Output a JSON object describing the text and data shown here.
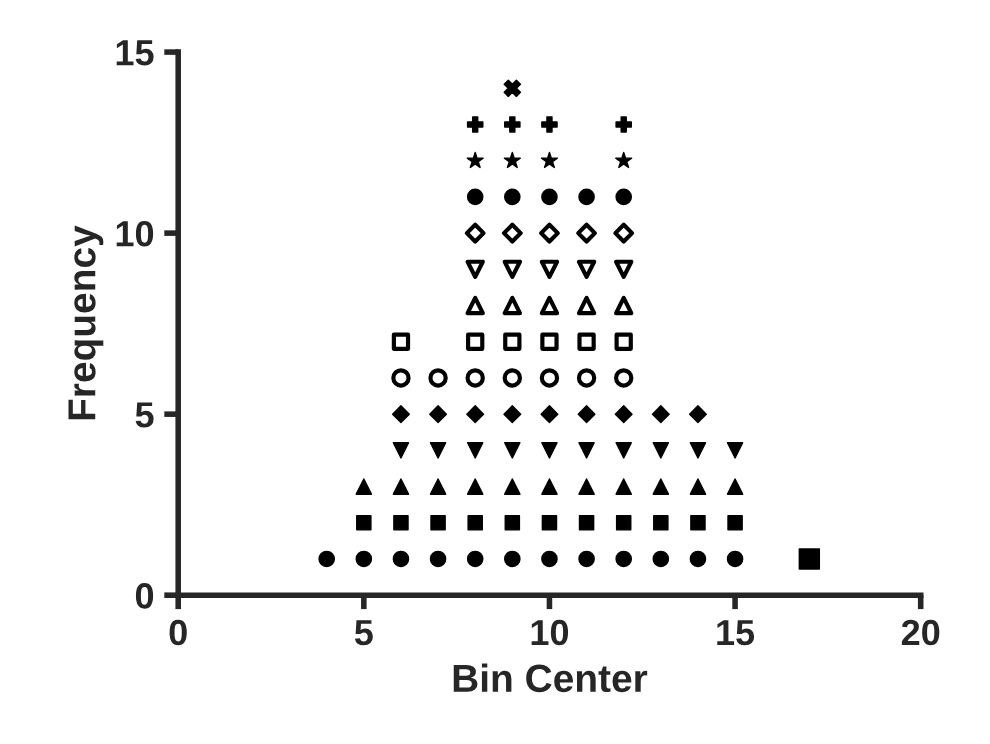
{
  "chart_data": {
    "type": "scatter",
    "xlabel": "Bin Center",
    "ylabel": "Frequency",
    "xlim": [
      0,
      20
    ],
    "xticks": [
      0,
      5,
      10,
      15,
      20
    ],
    "ylim": [
      0,
      15
    ],
    "yticks": [
      0,
      5,
      10,
      15
    ],
    "grid": false,
    "legend": false,
    "series": [
      {
        "color": "#000000",
        "marker": "circle",
        "x": [
          4,
          5,
          6,
          7,
          8,
          9,
          10,
          11,
          12,
          13,
          14,
          15
        ],
        "values": [
          1,
          1,
          1,
          1,
          1,
          1,
          1,
          1,
          1,
          1,
          1,
          1
        ]
      },
      {
        "color": "#000000",
        "marker": "square",
        "x": [
          5,
          6,
          7,
          8,
          9,
          10,
          11,
          12,
          13,
          14,
          15
        ],
        "values": [
          2,
          2,
          2,
          2,
          2,
          2,
          2,
          2,
          2,
          2,
          2
        ]
      },
      {
        "color": "#000000",
        "marker": "triangle",
        "x": [
          5,
          6,
          7,
          8,
          9,
          10,
          11,
          12,
          13,
          14,
          15
        ],
        "values": [
          3,
          3,
          3,
          3,
          3,
          3,
          3,
          3,
          3,
          3,
          3
        ]
      },
      {
        "color": "#000000",
        "marker": "triangle_down",
        "x": [
          6,
          7,
          8,
          9,
          10,
          11,
          12,
          13,
          14,
          15
        ],
        "values": [
          4,
          4,
          4,
          4,
          4,
          4,
          4,
          4,
          4,
          4
        ]
      },
      {
        "color": "#000000",
        "marker": "diamond",
        "x": [
          6,
          7,
          8,
          9,
          10,
          11,
          12,
          13,
          14
        ],
        "values": [
          5,
          5,
          5,
          5,
          5,
          5,
          5,
          5,
          5
        ]
      },
      {
        "color": "#000000",
        "marker": "circle",
        "x": [
          6,
          7,
          8,
          9,
          10,
          11,
          12
        ],
        "values": [
          6,
          6,
          6,
          6,
          6,
          6,
          6
        ]
      },
      {
        "color": "#000000",
        "marker": "square",
        "x": [
          6,
          8,
          9,
          10,
          11,
          12
        ],
        "values": [
          7,
          7,
          7,
          7,
          7,
          7
        ]
      },
      {
        "color": "#000000",
        "marker": "triangle",
        "x": [
          8,
          9,
          10,
          11,
          12
        ],
        "values": [
          8,
          8,
          8,
          8,
          8
        ]
      },
      {
        "color": "#000000",
        "marker": "triangle_down",
        "x": [
          8,
          9,
          10,
          11,
          12
        ],
        "values": [
          9,
          9,
          9,
          9,
          9
        ]
      },
      {
        "color": "#000000",
        "marker": "diamond",
        "x": [
          8,
          9,
          10,
          11,
          12
        ],
        "values": [
          10,
          10,
          10,
          10,
          10
        ]
      },
      {
        "color": "#000000",
        "marker": "circle",
        "x": [
          8,
          9,
          10,
          11,
          12
        ],
        "values": [
          11,
          11,
          11,
          11,
          11
        ]
      },
      {
        "color": "#000000",
        "marker": "star",
        "x": [
          8,
          9,
          10,
          12
        ],
        "values": [
          12,
          12,
          12,
          12
        ]
      },
      {
        "color": "#000000",
        "marker": "plus",
        "x": [
          8,
          9,
          10,
          12
        ],
        "values": [
          13,
          13,
          13,
          13
        ]
      },
      {
        "color": "#000000",
        "marker": "cross",
        "x": [
          9
        ],
        "values": [
          14
        ]
      },
      {
        "color": "#000000",
        "marker": "square",
        "x": [
          17
        ],
        "values": [
          1
        ]
      }
    ]
  }
}
